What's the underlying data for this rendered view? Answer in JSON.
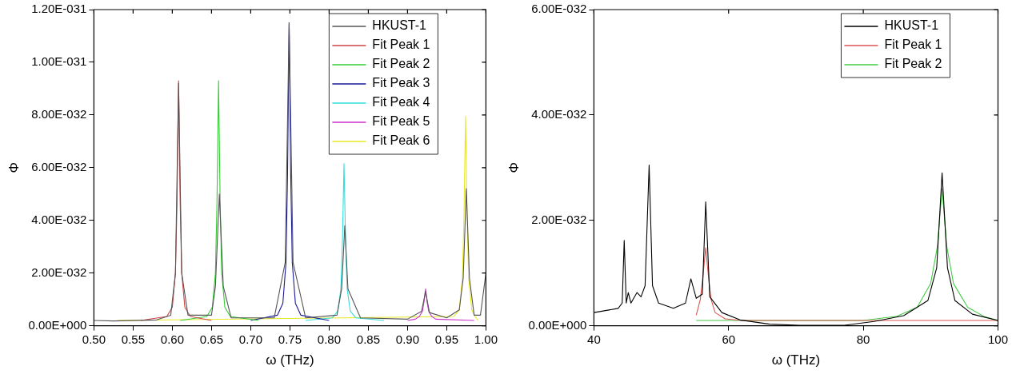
{
  "chart_data": [
    {
      "type": "line",
      "xlabel": "ω (THz)",
      "ylabel": "Φ",
      "xlim": [
        0.5,
        1.0
      ],
      "ylim": [
        0,
        1.2e-31
      ],
      "xticks": [
        {
          "value": 0.5,
          "label": "0.50"
        },
        {
          "value": 0.55,
          "label": "0.55"
        },
        {
          "value": 0.6,
          "label": "0.60"
        },
        {
          "value": 0.65,
          "label": "0.65"
        },
        {
          "value": 0.7,
          "label": "0.70"
        },
        {
          "value": 0.75,
          "label": "0.75"
        },
        {
          "value": 0.8,
          "label": "0.80"
        },
        {
          "value": 0.85,
          "label": "0.85"
        },
        {
          "value": 0.9,
          "label": "0.90"
        },
        {
          "value": 0.95,
          "label": "0.95"
        },
        {
          "value": 1.0,
          "label": "1.00"
        }
      ],
      "yticks": [
        {
          "value": 0,
          "label": "0.00E+000"
        },
        {
          "value": 2e-32,
          "label": "2.00E-032"
        },
        {
          "value": 4e-32,
          "label": "4.00E-032"
        },
        {
          "value": 6e-32,
          "label": "6.00E-032"
        },
        {
          "value": 8e-32,
          "label": "8.00E-032"
        },
        {
          "value": 1e-31,
          "label": "1.00E-031"
        },
        {
          "value": 1.2e-31,
          "label": "1.20E-031"
        }
      ],
      "grid": false,
      "legend": "top right",
      "marker": "none",
      "series": [
        {
          "name": "HKUST-1",
          "color": "#555555",
          "x": [
            0.5,
            0.525,
            0.58,
            0.598,
            0.604,
            0.608,
            0.612,
            0.62,
            0.65,
            0.655,
            0.66,
            0.665,
            0.675,
            0.73,
            0.744,
            0.749,
            0.754,
            0.77,
            0.81,
            0.816,
            0.82,
            0.824,
            0.84,
            0.9,
            0.918,
            0.923,
            0.928,
            0.95,
            0.966,
            0.971,
            0.975,
            0.979,
            0.985,
            0.993,
            1.0
          ],
          "values": [
            2e-33,
            1.8e-33,
            2.2e-33,
            4e-33,
            2e-32,
            9.2e-32,
            2e-32,
            4e-33,
            4e-33,
            1.5e-32,
            5e-32,
            1.5e-32,
            3e-33,
            3e-33,
            2.4e-32,
            1.15e-31,
            2.4e-32,
            3e-33,
            4e-33,
            1.4e-32,
            3.8e-32,
            1.4e-32,
            3e-33,
            2.5e-33,
            5.5e-33,
            1.3e-32,
            5e-33,
            3e-33,
            6e-33,
            1.8e-32,
            5.2e-32,
            1.8e-32,
            4e-33,
            4e-33,
            2e-32
          ]
        },
        {
          "name": "Fit Peak 1",
          "color": "#cc4444",
          "x": [
            0.56,
            0.593,
            0.6,
            0.604,
            0.606,
            0.608,
            0.61,
            0.612,
            0.616,
            0.623,
            0.65
          ],
          "values": [
            2e-33,
            3.5e-33,
            7e-33,
            2e-32,
            4.7e-32,
            9.3e-32,
            4.7e-32,
            2e-32,
            7e-33,
            3.5e-33,
            2e-33
          ]
        },
        {
          "name": "Fit Peak 2",
          "color": "#33cc33",
          "x": [
            0.61,
            0.644,
            0.651,
            0.655,
            0.657,
            0.659,
            0.661,
            0.663,
            0.667,
            0.674,
            0.71
          ],
          "values": [
            2e-33,
            3.5e-33,
            7e-33,
            2e-32,
            4.7e-32,
            9.3e-32,
            4.7e-32,
            2e-32,
            7e-33,
            3.5e-33,
            2e-33
          ]
        },
        {
          "name": "Fit Peak 3",
          "color": "#1a1a99",
          "x": [
            0.7,
            0.734,
            0.741,
            0.745,
            0.747,
            0.749,
            0.751,
            0.753,
            0.757,
            0.764,
            0.8
          ],
          "values": [
            2e-33,
            4e-33,
            8.5e-33,
            2.4e-32,
            5.8e-32,
            1.15e-31,
            5.8e-32,
            2.4e-32,
            8.5e-33,
            4e-33,
            2e-33
          ]
        },
        {
          "name": "Fit Peak 4",
          "color": "#33dddd",
          "x": [
            0.77,
            0.804,
            0.811,
            0.815,
            0.817,
            0.819,
            0.821,
            0.823,
            0.827,
            0.834,
            0.87
          ],
          "values": [
            2e-33,
            3e-33,
            5.5e-33,
            1.4e-32,
            3.2e-32,
            6.15e-32,
            3.2e-32,
            1.4e-32,
            5.5e-33,
            3e-33,
            2e-33
          ]
        },
        {
          "name": "Fit Peak 5",
          "color": "#cc33cc",
          "x": [
            0.9,
            0.91,
            0.915,
            0.919,
            0.921,
            0.923,
            0.925,
            0.927,
            0.931,
            0.936,
            0.985
          ],
          "values": [
            2e-33,
            2.5e-33,
            3.5e-33,
            5.5e-33,
            9e-33,
            1.4e-32,
            9e-33,
            5.5e-33,
            3.5e-33,
            2.5e-33,
            2e-33
          ]
        },
        {
          "name": "Fit Peak 6",
          "color": "#e8e822",
          "x": [
            0.53,
            0.959,
            0.966,
            0.97,
            0.972,
            0.974,
            0.976,
            0.978,
            0.982,
            0.986,
            0.99
          ],
          "values": [
            2e-33,
            3.5e-33,
            6e-33,
            1.8e-32,
            4.1e-32,
            7.95e-32,
            4.1e-32,
            1.8e-32,
            6e-33,
            3.5e-33,
            2e-33
          ]
        }
      ]
    },
    {
      "type": "line",
      "xlabel": "ω (THz)",
      "ylabel": "Φ",
      "xlim": [
        40,
        100
      ],
      "ylim": [
        0,
        6e-32
      ],
      "xticks": [
        40,
        60,
        80,
        100
      ],
      "yticks": [
        {
          "value": 0,
          "label": "0.00E+000"
        },
        {
          "value": 2e-32,
          "label": "2.00E-032"
        },
        {
          "value": 4e-32,
          "label": "4.00E-032"
        },
        {
          "value": 6e-32,
          "label": "6.00E-032"
        }
      ],
      "grid": false,
      "legend": "top right",
      "marker": "none",
      "series": [
        {
          "name": "HKUST-1",
          "color": "#000000",
          "x": [
            40,
            43.6,
            44.2,
            44.5,
            44.8,
            45.1,
            45.5,
            46.4,
            47.0,
            47.6,
            48.2,
            48.7,
            49.6,
            51.8,
            53.6,
            54.4,
            55.2,
            56.1,
            56.6,
            57.2,
            59.0,
            61.7,
            66.1,
            70.5,
            77.2,
            81.6,
            86.0,
            89.6,
            90.9,
            91.7,
            92.5,
            93.6,
            96.2,
            100
          ],
          "values": [
            2.5e-33,
            3.3e-33,
            4.3e-33,
            1.62e-32,
            4.3e-33,
            6.3e-33,
            4.3e-33,
            6.3e-33,
            5.5e-33,
            7.6e-33,
            3.05e-32,
            7.6e-33,
            4.3e-33,
            3.3e-33,
            4.3e-33,
            8.9e-33,
            5.2e-33,
            6e-33,
            2.35e-32,
            5.5e-33,
            2.5e-33,
            1.1e-33,
            3e-34,
            1e-34,
            1e-34,
            8e-34,
            1.9e-33,
            4.8e-33,
            1.1e-32,
            2.9e-32,
            1.1e-32,
            4.8e-33,
            2.2e-33,
            1e-33
          ]
        },
        {
          "name": "Fit Peak 1",
          "color": "#dd5555",
          "x": [
            55.2,
            55.8,
            56.2,
            56.6,
            57.0,
            57.4,
            58.0,
            59.5,
            62,
            100
          ],
          "values": [
            2e-33,
            5e-33,
            9.5e-33,
            1.48e-32,
            9.5e-33,
            5e-33,
            2.5e-33,
            1.3e-33,
            1e-33,
            1e-33
          ]
        },
        {
          "name": "Fit Peak 2",
          "color": "#44cc44",
          "x": [
            55.2,
            80,
            85,
            88,
            90,
            91,
            91.7,
            92.4,
            93.4,
            95.5,
            98,
            100
          ],
          "values": [
            1e-33,
            1e-33,
            1.8e-33,
            3.5e-33,
            8e-33,
            1.5e-32,
            2.6e-32,
            1.5e-32,
            8e-33,
            3.5e-33,
            1.7e-33,
            1e-33
          ]
        }
      ]
    }
  ]
}
